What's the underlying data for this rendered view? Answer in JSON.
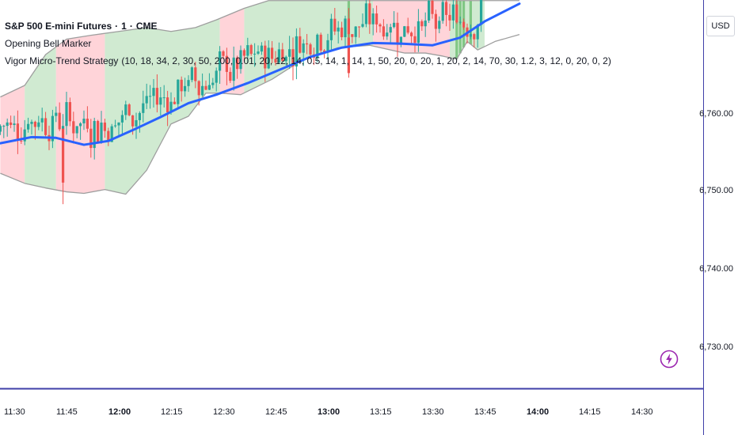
{
  "header": {
    "title": "S&P 500 E-mini Futures",
    "interval": "1",
    "exchange": "CME",
    "separator": "·"
  },
  "indicators": [
    {
      "name": "Opening Bell Marker"
    },
    {
      "name": "Vigor Micro-Trend Strategy",
      "params": "(10, 18, 34, 2, 30, 50, 200, 0.01, 20, 12, 14, 0.5, 14, 1, 14, 1, 50, 20, 0, 20, 1, 20, 2, 14, 70, 30, 1.2, 3, 12, 0, 20, 0, 2)"
    }
  ],
  "price_axis": {
    "currency": "USD",
    "ticks": [
      "6,760.00",
      "6,750.00",
      "6,740.00",
      "6,730.00"
    ]
  },
  "time_axis": {
    "ticks": [
      {
        "label": "11:30",
        "bold": false
      },
      {
        "label": "11:45",
        "bold": false
      },
      {
        "label": "12:00",
        "bold": true
      },
      {
        "label": "12:15",
        "bold": false
      },
      {
        "label": "12:30",
        "bold": false
      },
      {
        "label": "12:45",
        "bold": false
      },
      {
        "label": "13:00",
        "bold": true
      },
      {
        "label": "13:15",
        "bold": false
      },
      {
        "label": "13:30",
        "bold": false
      },
      {
        "label": "13:45",
        "bold": false
      },
      {
        "label": "14:00",
        "bold": true
      },
      {
        "label": "14:15",
        "bold": false
      },
      {
        "label": "14:30",
        "bold": false
      }
    ]
  },
  "colors": {
    "up": "#26a69a",
    "down": "#ef5350",
    "ma": "#2962ff",
    "band_line": "#9e9e9e",
    "bull_fill": "#c8e6c9",
    "bear_fill": "#ffcdd2",
    "axis_line": "#3f3fa8"
  },
  "chart_data": {
    "type": "candlestick",
    "time_range": [
      "11:26",
      "14:40"
    ],
    "price_range": [
      6725.6,
      6775.0
    ],
    "ma": [
      [
        "11:26",
        6756.5
      ],
      [
        "11:35",
        6757.3
      ],
      [
        "11:42",
        6757.2
      ],
      [
        "11:50",
        6756.3
      ],
      [
        "11:57",
        6756.8
      ],
      [
        "12:04",
        6758.2
      ],
      [
        "12:12",
        6759.9
      ],
      [
        "12:20",
        6761.7
      ],
      [
        "12:28",
        6762.8
      ],
      [
        "12:37",
        6764.3
      ],
      [
        "12:46",
        6766.0
      ],
      [
        "12:55",
        6767.7
      ],
      [
        "13:04",
        6768.9
      ],
      [
        "13:13",
        6769.5
      ],
      [
        "13:22",
        6769.4
      ],
      [
        "13:30",
        6769.2
      ],
      [
        "13:38",
        6770.2
      ],
      [
        "13:45",
        6772.3
      ],
      [
        "13:55",
        6774.6
      ]
    ],
    "band_upper": [
      [
        "11:26",
        6762.5
      ],
      [
        "11:33",
        6764.0
      ],
      [
        "11:39",
        6768.0
      ],
      [
        "11:45",
        6770.0
      ],
      [
        "11:52",
        6770.5
      ],
      [
        "12:00",
        6771.0
      ],
      [
        "12:08",
        6771.5
      ],
      [
        "12:15",
        6771.0
      ],
      [
        "12:22",
        6771.5
      ],
      [
        "12:28",
        6772.5
      ],
      [
        "12:36",
        6774.0
      ],
      [
        "12:43",
        6775.0
      ],
      [
        "13:43",
        6775.0
      ],
      [
        "13:55",
        6775.0
      ]
    ],
    "band_lower": [
      [
        "11:26",
        6752.6
      ],
      [
        "11:33",
        6751.3
      ],
      [
        "11:39",
        6750.7
      ],
      [
        "11:45",
        6750.2
      ],
      [
        "11:50",
        6750.0
      ],
      [
        "11:56",
        6750.5
      ],
      [
        "12:02",
        6749.9
      ],
      [
        "12:08",
        6753.0
      ],
      [
        "12:15",
        6759.0
      ],
      [
        "12:20",
        6760.0
      ],
      [
        "12:25",
        6763.0
      ],
      [
        "12:29",
        6763.0
      ],
      [
        "12:35",
        6762.8
      ],
      [
        "12:44",
        6764.8
      ],
      [
        "12:53",
        6767.4
      ],
      [
        "13:03",
        6768.9
      ],
      [
        "13:12",
        6769.2
      ],
      [
        "13:22",
        6768.2
      ],
      [
        "13:28",
        6768.2
      ],
      [
        "13:33",
        6767.8
      ],
      [
        "13:37",
        6767.4
      ],
      [
        "13:40",
        6769.7
      ],
      [
        "13:43",
        6768.6
      ],
      [
        "13:48",
        6769.7
      ],
      [
        "13:55",
        6770.6
      ]
    ],
    "regions": [
      {
        "start": "11:26",
        "end": "11:33",
        "state": "bear"
      },
      {
        "start": "11:33",
        "end": "11:42",
        "state": "bull"
      },
      {
        "start": "11:42",
        "end": "11:56",
        "state": "bear"
      },
      {
        "start": "11:56",
        "end": "12:29",
        "state": "bull"
      },
      {
        "start": "12:29",
        "end": "12:36",
        "state": "bear"
      },
      {
        "start": "12:36",
        "end": "13:13",
        "state": "bull"
      },
      {
        "start": "13:13",
        "end": "13:35",
        "state": "bear"
      },
      {
        "start": "13:35",
        "end": "13:45",
        "state": "bull"
      }
    ],
    "signals": [
      "13:06",
      "13:37",
      "13:38",
      "13:39",
      "13:41"
    ]
  }
}
